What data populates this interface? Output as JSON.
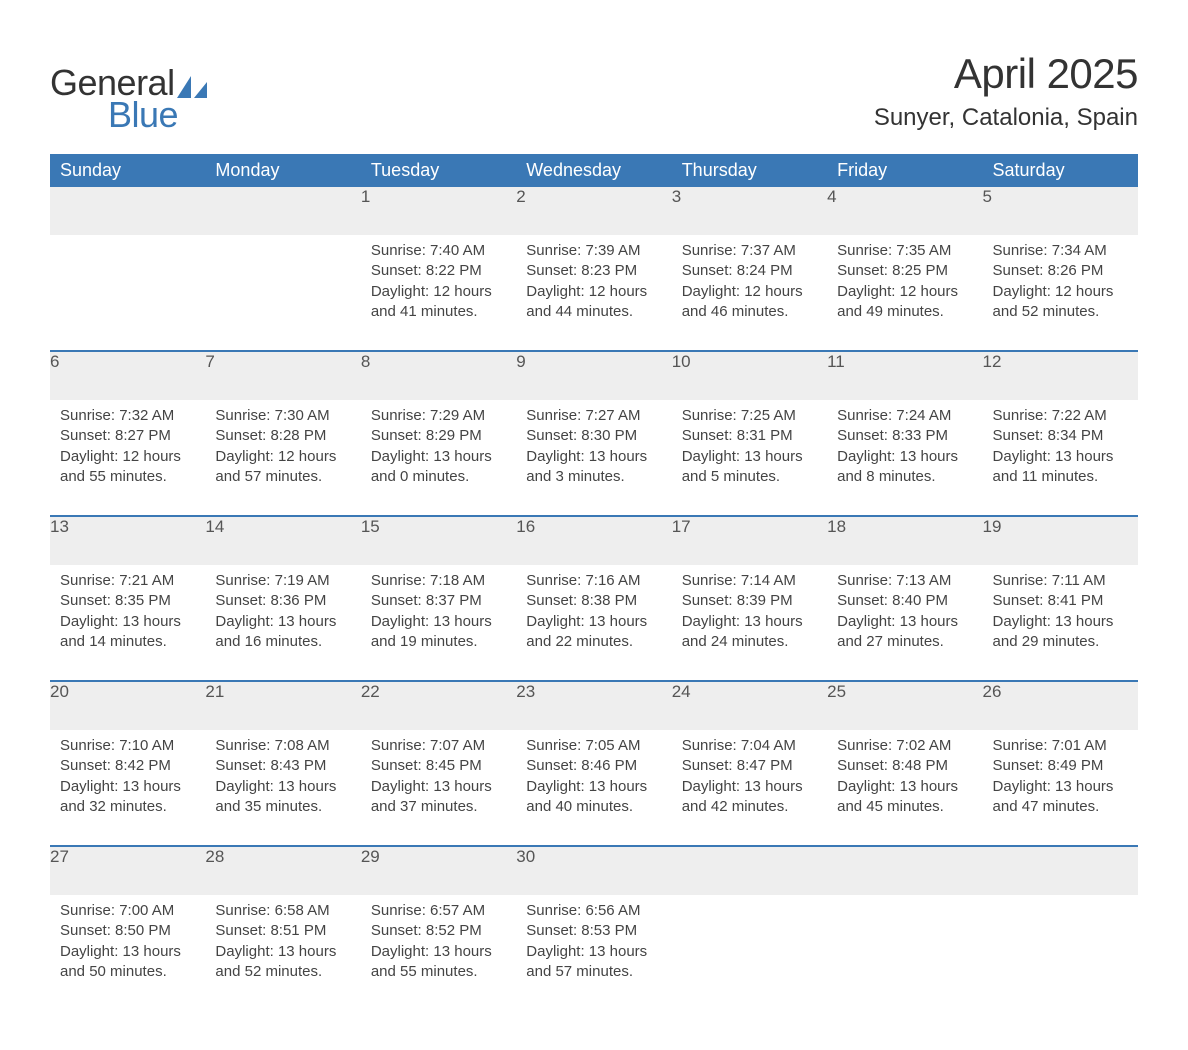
{
  "logo": {
    "word1": "General",
    "word2": "Blue",
    "text_color": "#333333",
    "accent_color": "#3a78b5"
  },
  "title": "April 2025",
  "location": "Sunyer, Catalonia, Spain",
  "header_bg": "#3a78b5",
  "header_fg": "#ffffff",
  "daynum_bg": "#eeeeee",
  "week_border": "#3a78b5",
  "days": [
    "Sunday",
    "Monday",
    "Tuesday",
    "Wednesday",
    "Thursday",
    "Friday",
    "Saturday"
  ],
  "weeks": [
    [
      null,
      null,
      {
        "n": "1",
        "sr": "7:40 AM",
        "ss": "8:22 PM",
        "dl": "12 hours and 41 minutes."
      },
      {
        "n": "2",
        "sr": "7:39 AM",
        "ss": "8:23 PM",
        "dl": "12 hours and 44 minutes."
      },
      {
        "n": "3",
        "sr": "7:37 AM",
        "ss": "8:24 PM",
        "dl": "12 hours and 46 minutes."
      },
      {
        "n": "4",
        "sr": "7:35 AM",
        "ss": "8:25 PM",
        "dl": "12 hours and 49 minutes."
      },
      {
        "n": "5",
        "sr": "7:34 AM",
        "ss": "8:26 PM",
        "dl": "12 hours and 52 minutes."
      }
    ],
    [
      {
        "n": "6",
        "sr": "7:32 AM",
        "ss": "8:27 PM",
        "dl": "12 hours and 55 minutes."
      },
      {
        "n": "7",
        "sr": "7:30 AM",
        "ss": "8:28 PM",
        "dl": "12 hours and 57 minutes."
      },
      {
        "n": "8",
        "sr": "7:29 AM",
        "ss": "8:29 PM",
        "dl": "13 hours and 0 minutes."
      },
      {
        "n": "9",
        "sr": "7:27 AM",
        "ss": "8:30 PM",
        "dl": "13 hours and 3 minutes."
      },
      {
        "n": "10",
        "sr": "7:25 AM",
        "ss": "8:31 PM",
        "dl": "13 hours and 5 minutes."
      },
      {
        "n": "11",
        "sr": "7:24 AM",
        "ss": "8:33 PM",
        "dl": "13 hours and 8 minutes."
      },
      {
        "n": "12",
        "sr": "7:22 AM",
        "ss": "8:34 PM",
        "dl": "13 hours and 11 minutes."
      }
    ],
    [
      {
        "n": "13",
        "sr": "7:21 AM",
        "ss": "8:35 PM",
        "dl": "13 hours and 14 minutes."
      },
      {
        "n": "14",
        "sr": "7:19 AM",
        "ss": "8:36 PM",
        "dl": "13 hours and 16 minutes."
      },
      {
        "n": "15",
        "sr": "7:18 AM",
        "ss": "8:37 PM",
        "dl": "13 hours and 19 minutes."
      },
      {
        "n": "16",
        "sr": "7:16 AM",
        "ss": "8:38 PM",
        "dl": "13 hours and 22 minutes."
      },
      {
        "n": "17",
        "sr": "7:14 AM",
        "ss": "8:39 PM",
        "dl": "13 hours and 24 minutes."
      },
      {
        "n": "18",
        "sr": "7:13 AM",
        "ss": "8:40 PM",
        "dl": "13 hours and 27 minutes."
      },
      {
        "n": "19",
        "sr": "7:11 AM",
        "ss": "8:41 PM",
        "dl": "13 hours and 29 minutes."
      }
    ],
    [
      {
        "n": "20",
        "sr": "7:10 AM",
        "ss": "8:42 PM",
        "dl": "13 hours and 32 minutes."
      },
      {
        "n": "21",
        "sr": "7:08 AM",
        "ss": "8:43 PM",
        "dl": "13 hours and 35 minutes."
      },
      {
        "n": "22",
        "sr": "7:07 AM",
        "ss": "8:45 PM",
        "dl": "13 hours and 37 minutes."
      },
      {
        "n": "23",
        "sr": "7:05 AM",
        "ss": "8:46 PM",
        "dl": "13 hours and 40 minutes."
      },
      {
        "n": "24",
        "sr": "7:04 AM",
        "ss": "8:47 PM",
        "dl": "13 hours and 42 minutes."
      },
      {
        "n": "25",
        "sr": "7:02 AM",
        "ss": "8:48 PM",
        "dl": "13 hours and 45 minutes."
      },
      {
        "n": "26",
        "sr": "7:01 AM",
        "ss": "8:49 PM",
        "dl": "13 hours and 47 minutes."
      }
    ],
    [
      {
        "n": "27",
        "sr": "7:00 AM",
        "ss": "8:50 PM",
        "dl": "13 hours and 50 minutes."
      },
      {
        "n": "28",
        "sr": "6:58 AM",
        "ss": "8:51 PM",
        "dl": "13 hours and 52 minutes."
      },
      {
        "n": "29",
        "sr": "6:57 AM",
        "ss": "8:52 PM",
        "dl": "13 hours and 55 minutes."
      },
      {
        "n": "30",
        "sr": "6:56 AM",
        "ss": "8:53 PM",
        "dl": "13 hours and 57 minutes."
      },
      null,
      null,
      null
    ]
  ],
  "labels": {
    "sunrise": "Sunrise:",
    "sunset": "Sunset:",
    "daylight": "Daylight:"
  }
}
